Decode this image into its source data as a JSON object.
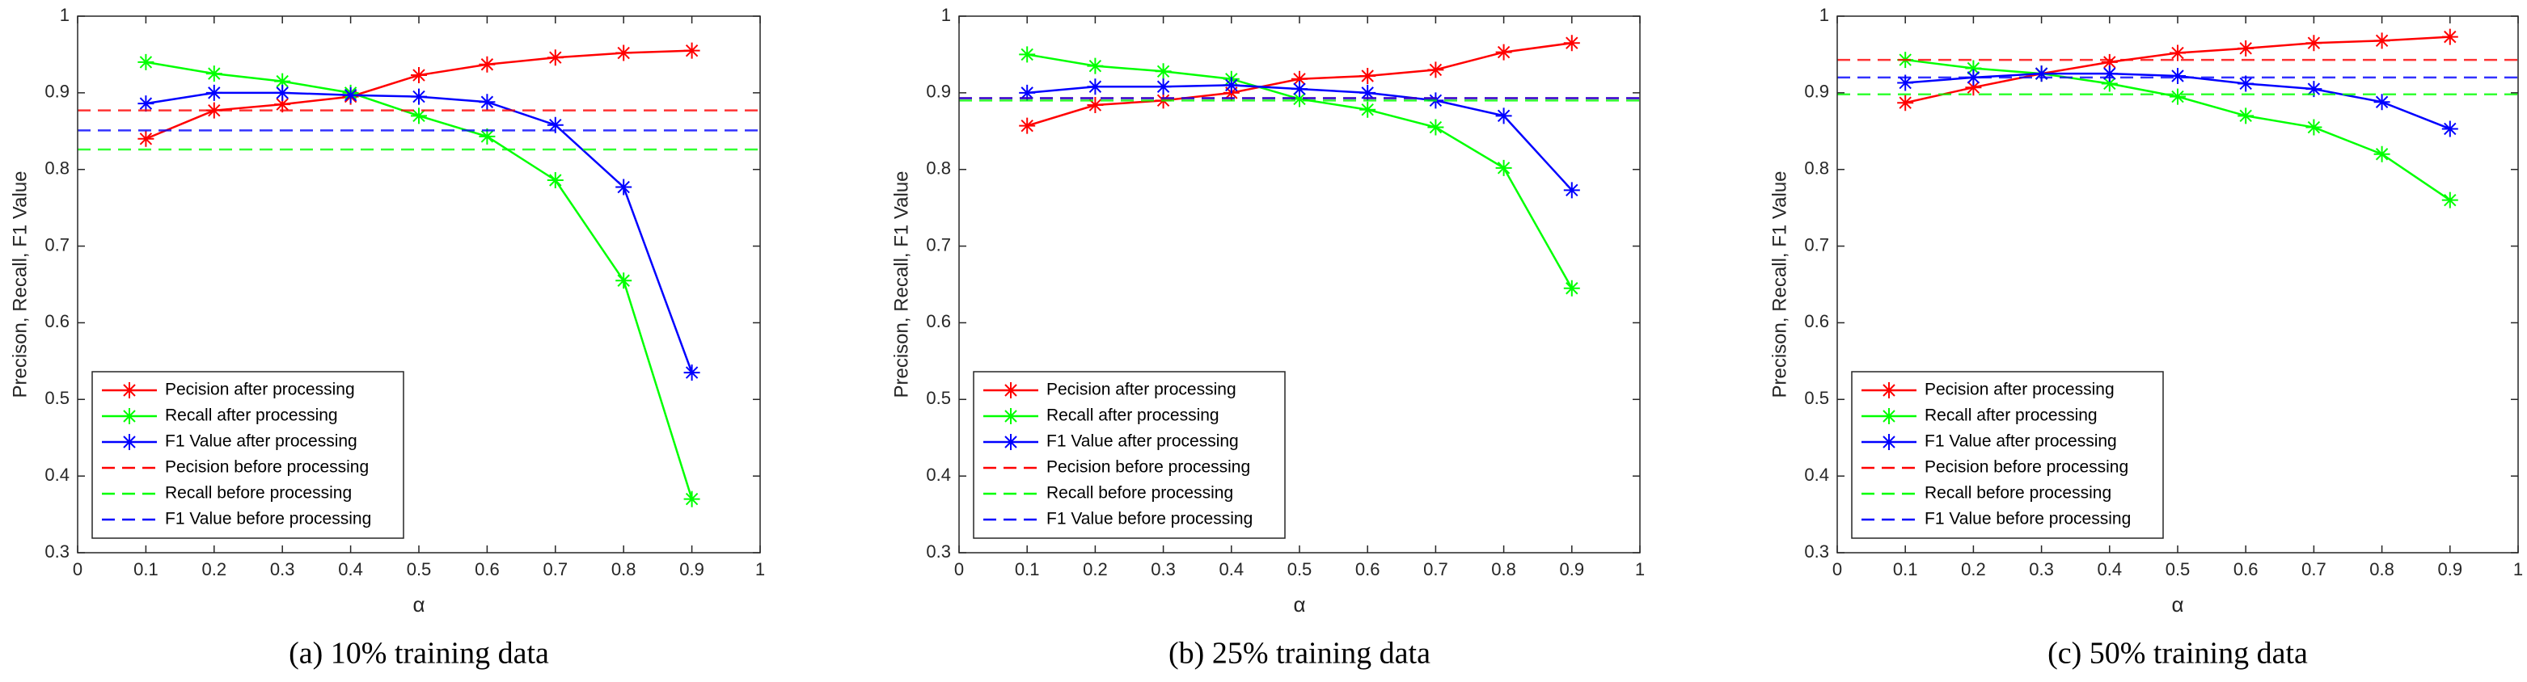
{
  "chart_data": [
    {
      "type": "line",
      "title": "(a) 10% training data",
      "xlabel": "α",
      "ylabel": "Precison, Recall, F1 Value",
      "x": [
        0.1,
        0.2,
        0.3,
        0.4,
        0.5,
        0.6,
        0.7,
        0.8,
        0.9
      ],
      "xlim": [
        0,
        1
      ],
      "xticks": [
        0,
        0.1,
        0.2,
        0.3,
        0.4,
        0.5,
        0.6,
        0.7,
        0.8,
        0.9,
        1
      ],
      "ylim": [
        0.3,
        1
      ],
      "yticks": [
        0.3,
        0.4,
        0.5,
        0.6,
        0.7,
        0.8,
        0.9,
        1
      ],
      "legend": "lower left",
      "series": [
        {
          "name": "Pecision after processing",
          "color": "#ff0000",
          "values": [
            0.84,
            0.877,
            0.885,
            0.895,
            0.923,
            0.937,
            0.946,
            0.952,
            0.955
          ]
        },
        {
          "name": "Recall after processing",
          "color": "#00ff00",
          "values": [
            0.94,
            0.925,
            0.915,
            0.9,
            0.87,
            0.843,
            0.786,
            0.655,
            0.37
          ]
        },
        {
          "name": "F1 Value after processing",
          "color": "#0000ff",
          "values": [
            0.886,
            0.9,
            0.9,
            0.897,
            0.895,
            0.888,
            0.858,
            0.777,
            0.535
          ]
        },
        {
          "name": "Pecision before processing",
          "color": "#ff0000",
          "value": 0.877,
          "dashed": true
        },
        {
          "name": "Recall before processing",
          "color": "#00ff00",
          "value": 0.826,
          "dashed": true
        },
        {
          "name": "F1 Value before processing",
          "color": "#0000ff",
          "value": 0.851,
          "dashed": true
        }
      ]
    },
    {
      "type": "line",
      "title": "(b) 25% training data",
      "xlabel": "α",
      "ylabel": "Precison, Recall, F1 Value",
      "x": [
        0.1,
        0.2,
        0.3,
        0.4,
        0.5,
        0.6,
        0.7,
        0.8,
        0.9
      ],
      "xlim": [
        0,
        1
      ],
      "xticks": [
        0,
        0.1,
        0.2,
        0.3,
        0.4,
        0.5,
        0.6,
        0.7,
        0.8,
        0.9,
        1
      ],
      "ylim": [
        0.3,
        1
      ],
      "yticks": [
        0.3,
        0.4,
        0.5,
        0.6,
        0.7,
        0.8,
        0.9,
        1
      ],
      "legend": "lower left",
      "series": [
        {
          "name": "Pecision after processing",
          "color": "#ff0000",
          "values": [
            0.857,
            0.884,
            0.89,
            0.9,
            0.918,
            0.922,
            0.93,
            0.953,
            0.965
          ]
        },
        {
          "name": "Recall after processing",
          "color": "#00ff00",
          "values": [
            0.95,
            0.935,
            0.928,
            0.918,
            0.892,
            0.878,
            0.855,
            0.802,
            0.645
          ]
        },
        {
          "name": "F1 Value after processing",
          "color": "#0000ff",
          "values": [
            0.9,
            0.908,
            0.908,
            0.91,
            0.905,
            0.9,
            0.89,
            0.87,
            0.773
          ]
        },
        {
          "name": "Pecision before processing",
          "color": "#ff0000",
          "value": 0.893,
          "dashed": true
        },
        {
          "name": "Recall before processing",
          "color": "#00ff00",
          "value": 0.89,
          "dashed": true
        },
        {
          "name": "F1 Value before processing",
          "color": "#0000ff",
          "value": 0.893,
          "dashed": true
        }
      ]
    },
    {
      "type": "line",
      "title": "(c) 50% training data",
      "xlabel": "α",
      "ylabel": "Precison, Recall, F1 Value",
      "x": [
        0.1,
        0.2,
        0.3,
        0.4,
        0.5,
        0.6,
        0.7,
        0.8,
        0.9
      ],
      "xlim": [
        0,
        1
      ],
      "xticks": [
        0,
        0.1,
        0.2,
        0.3,
        0.4,
        0.5,
        0.6,
        0.7,
        0.8,
        0.9,
        1
      ],
      "ylim": [
        0.3,
        1
      ],
      "yticks": [
        0.3,
        0.4,
        0.5,
        0.6,
        0.7,
        0.8,
        0.9,
        1
      ],
      "legend": "lower left",
      "series": [
        {
          "name": "Pecision after processing",
          "color": "#ff0000",
          "values": [
            0.887,
            0.907,
            0.925,
            0.94,
            0.952,
            0.958,
            0.965,
            0.968,
            0.973
          ]
        },
        {
          "name": "Recall after processing",
          "color": "#00ff00",
          "values": [
            0.943,
            0.932,
            0.925,
            0.912,
            0.895,
            0.87,
            0.855,
            0.82,
            0.76
          ]
        },
        {
          "name": "F1 Value after processing",
          "color": "#0000ff",
          "values": [
            0.913,
            0.92,
            0.925,
            0.925,
            0.922,
            0.912,
            0.905,
            0.888,
            0.853
          ]
        },
        {
          "name": "Pecision before processing",
          "color": "#ff0000",
          "value": 0.943,
          "dashed": true
        },
        {
          "name": "Recall before processing",
          "color": "#00ff00",
          "value": 0.898,
          "dashed": true
        },
        {
          "name": "F1 Value before processing",
          "color": "#0000ff",
          "value": 0.92,
          "dashed": true
        }
      ]
    }
  ]
}
